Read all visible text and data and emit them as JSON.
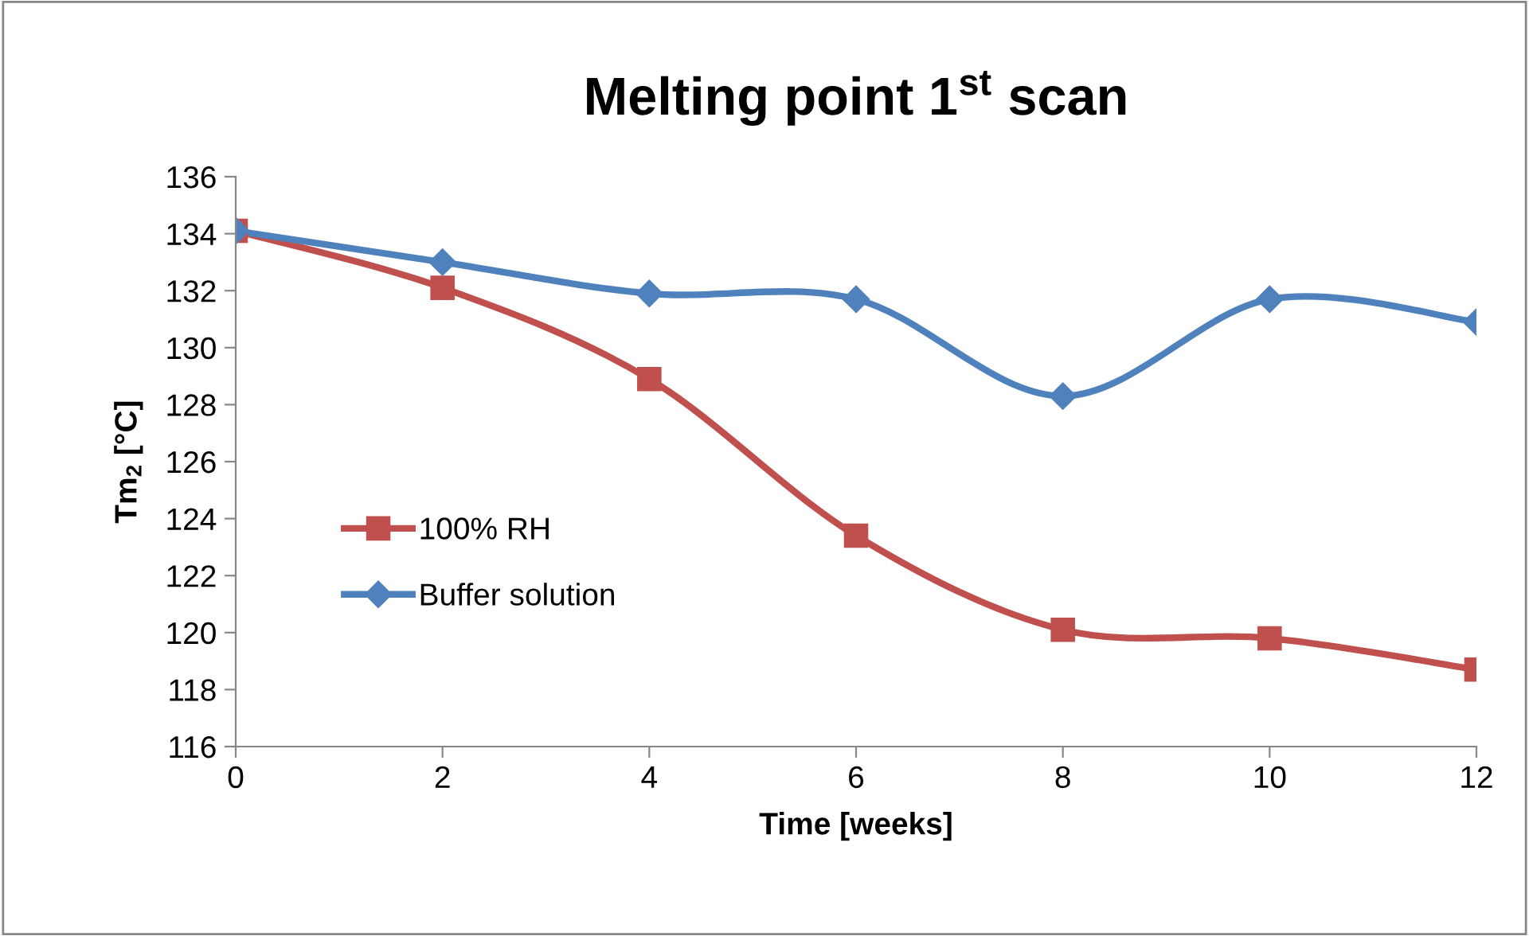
{
  "chart_data": {
    "type": "line",
    "title": "Melting point 1$^{st}$ scan",
    "xlabel": "Time [weeks]",
    "ylabel": "Tm$_{2}$ [°C]",
    "x": [
      0,
      2,
      4,
      6,
      8,
      10,
      12
    ],
    "xlim": [
      0,
      12
    ],
    "xticks": [
      0,
      2,
      4,
      6,
      8,
      10,
      12
    ],
    "ylim": [
      116,
      136
    ],
    "yticks": [
      116,
      118,
      120,
      122,
      124,
      126,
      128,
      130,
      132,
      134,
      136
    ],
    "grid": false,
    "legend": "left",
    "series": [
      {
        "name": "100% RH",
        "color": "#c0504d",
        "marker": "square",
        "values": [
          134.1,
          132.1,
          128.9,
          123.4,
          120.1,
          119.8,
          118.7
        ]
      },
      {
        "name": "Buffer solution",
        "color": "#4f81bd",
        "marker": "diamond",
        "values": [
          134.1,
          133.0,
          131.9,
          131.7,
          128.3,
          131.7,
          130.9
        ]
      }
    ]
  }
}
